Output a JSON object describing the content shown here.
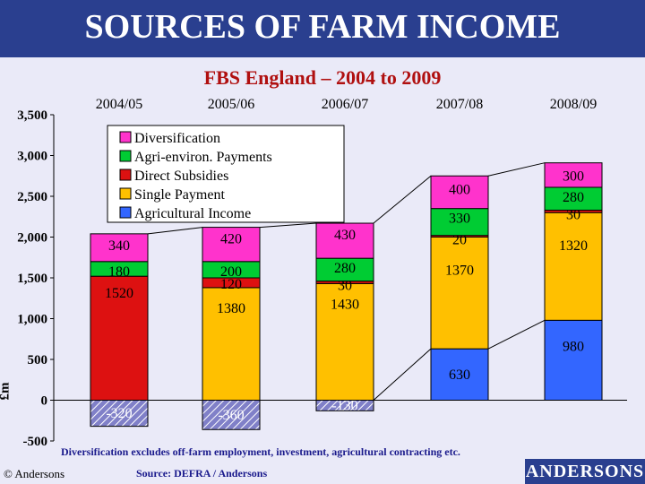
{
  "header": {
    "title": "SOURCES OF FARM INCOME"
  },
  "chart_data": {
    "type": "bar",
    "stacked": true,
    "title": "FBS England – 2004 to 2009",
    "ylabel": "£m",
    "xlabel": "",
    "ylim": [
      -500,
      3500
    ],
    "yticks": [
      -500,
      0,
      500,
      1000,
      1500,
      2000,
      2500,
      3000,
      3500
    ],
    "ytick_labels": [
      "-500",
      "0",
      "500",
      "1,000",
      "1,500",
      "2,000",
      "2,500",
      "3,000",
      "3,500"
    ],
    "grid": false,
    "legend_position": "top-left",
    "categories": [
      "2004/05",
      "2005/06",
      "2006/07",
      "2007/08",
      "2008/09"
    ],
    "legend": [
      {
        "name": "Diversification",
        "color": "#ff33cc"
      },
      {
        "name": "Agri-environ. Payments",
        "color": "#00cc33"
      },
      {
        "name": "Direct Subsidies",
        "color": "#dd1111"
      },
      {
        "name": "Single Payment",
        "color": "#ffc000"
      },
      {
        "name": "Agricultural Income",
        "color": "#3366ff"
      }
    ],
    "series": [
      {
        "name": "Agricultural Income",
        "color": "#3366ff",
        "values": [
          -320,
          -360,
          -130,
          630,
          980
        ],
        "labels": [
          "-320",
          "-360",
          "-130",
          "630",
          "980"
        ]
      },
      {
        "name": "Single Payment",
        "color": "#ffc000",
        "values": [
          0,
          1380,
          1430,
          1370,
          1320
        ],
        "labels": [
          "",
          "1380",
          "1430",
          "1370",
          "1320"
        ]
      },
      {
        "name": "Direct Subsidies",
        "color": "#dd1111",
        "values": [
          1520,
          120,
          30,
          20,
          30
        ],
        "labels": [
          "1520",
          "120",
          "30",
          "20",
          "30"
        ]
      },
      {
        "name": "Agri-environ. Payments",
        "color": "#00cc33",
        "values": [
          180,
          200,
          280,
          330,
          280
        ],
        "labels": [
          "180",
          "200",
          "280",
          "330",
          "280"
        ]
      },
      {
        "name": "Diversification",
        "color": "#ff33cc",
        "values": [
          340,
          420,
          430,
          400,
          300
        ],
        "labels": [
          "340",
          "420",
          "430",
          "400",
          "300"
        ]
      }
    ]
  },
  "footnote": "Diversification excludes off-farm employment, investment, agricultural contracting etc.",
  "source": "Source: DEFRA / Andersons",
  "copyright": "© Andersons",
  "brand": "ANDERSONS"
}
